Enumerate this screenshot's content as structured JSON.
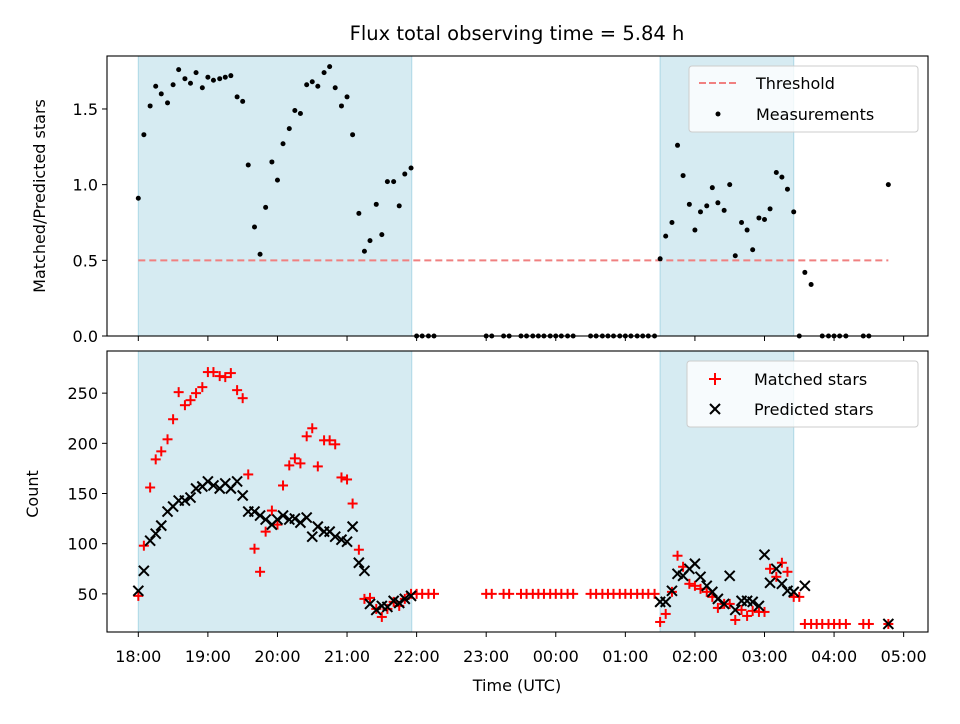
{
  "chart_data": [
    {
      "type": "scatter",
      "title": "Flux total observing time = 5.84 h",
      "xlabel": "",
      "ylabel": "Matched/Predicted stars",
      "xlim": [
        17.55,
        29.35
      ],
      "ylim": [
        0,
        1.85
      ],
      "yticks": [
        0.0,
        0.5,
        1.0,
        1.5
      ],
      "ytick_labels": [
        "0.0",
        "0.5",
        "1.0",
        "1.5"
      ],
      "grid": false,
      "legend_position": "top-right",
      "shaded_spans": [
        [
          18.0,
          21.93
        ],
        [
          25.5,
          27.42
        ]
      ],
      "threshold": {
        "name": "Threshold",
        "value": 0.5,
        "x_range": [
          18.0,
          28.78
        ],
        "color": "#f08080"
      },
      "series": [
        {
          "name": "Measurements",
          "x": [
            18.0,
            18.08,
            18.17,
            18.25,
            18.33,
            18.42,
            18.5,
            18.58,
            18.67,
            18.75,
            18.83,
            18.92,
            19.0,
            19.08,
            19.17,
            19.25,
            19.33,
            19.42,
            19.5,
            19.58,
            19.67,
            19.75,
            19.83,
            19.92,
            20.0,
            20.08,
            20.17,
            20.25,
            20.33,
            20.42,
            20.5,
            20.58,
            20.67,
            20.75,
            20.83,
            20.92,
            21.0,
            21.08,
            21.17,
            21.25,
            21.33,
            21.42,
            21.5,
            21.58,
            21.67,
            21.75,
            21.83,
            21.92,
            22.0,
            22.08,
            22.17,
            22.25,
            23.0,
            23.08,
            23.25,
            23.33,
            23.5,
            23.58,
            23.67,
            23.75,
            23.83,
            23.92,
            24.0,
            24.08,
            24.17,
            24.25,
            24.5,
            24.58,
            24.67,
            24.75,
            24.83,
            24.92,
            25.0,
            25.08,
            25.17,
            25.25,
            25.33,
            25.42,
            25.5,
            25.58,
            25.67,
            25.75,
            25.83,
            25.92,
            26.0,
            26.08,
            26.17,
            26.25,
            26.33,
            26.42,
            26.5,
            26.58,
            26.67,
            26.75,
            26.83,
            26.92,
            27.0,
            27.08,
            27.17,
            27.25,
            27.33,
            27.42,
            27.5,
            27.58,
            27.67,
            27.83,
            27.92,
            28.0,
            28.08,
            28.17,
            28.42,
            28.5,
            28.78
          ],
          "y": [
            0.91,
            1.33,
            1.52,
            1.65,
            1.6,
            1.54,
            1.66,
            1.76,
            1.7,
            1.67,
            1.74,
            1.64,
            1.71,
            1.69,
            1.7,
            1.71,
            1.72,
            1.58,
            1.55,
            1.13,
            0.72,
            0.54,
            0.85,
            1.15,
            1.03,
            1.27,
            1.37,
            1.49,
            1.47,
            1.66,
            1.68,
            1.65,
            1.74,
            1.78,
            1.64,
            1.52,
            1.58,
            1.33,
            0.81,
            0.56,
            0.63,
            0.87,
            0.67,
            1.02,
            1.02,
            0.86,
            1.07,
            1.11,
            0.0,
            0.0,
            0.0,
            0.0,
            0.0,
            0.0,
            0.0,
            0.0,
            0.0,
            0.0,
            0.0,
            0.0,
            0.0,
            0.0,
            0.0,
            0.0,
            0.0,
            0.0,
            0.0,
            0.0,
            0.0,
            0.0,
            0.0,
            0.0,
            0.0,
            0.0,
            0.0,
            0.0,
            0.0,
            0.0,
            0.51,
            0.66,
            0.75,
            1.26,
            1.06,
            0.87,
            0.7,
            0.82,
            0.86,
            0.98,
            0.88,
            0.83,
            1.0,
            0.53,
            0.75,
            0.7,
            0.57,
            0.78,
            0.77,
            0.84,
            1.08,
            1.05,
            0.97,
            0.82,
            0.0,
            0.42,
            0.34,
            0.0,
            0.0,
            0.0,
            0.0,
            0.0,
            0.0,
            0.0,
            1.0
          ],
          "color": "#000000"
        }
      ]
    },
    {
      "type": "scatter",
      "title": "",
      "xlabel": "Time (UTC)",
      "ylabel": "Count",
      "xlim": [
        17.55,
        29.35
      ],
      "ylim": [
        12,
        292
      ],
      "yticks": [
        50,
        100,
        150,
        200,
        250
      ],
      "ytick_labels": [
        "50",
        "100",
        "150",
        "200",
        "250"
      ],
      "xticks": [
        18,
        19,
        20,
        21,
        22,
        23,
        24,
        25,
        26,
        27,
        28,
        29
      ],
      "xtick_labels": [
        "18:00",
        "19:00",
        "20:00",
        "21:00",
        "22:00",
        "23:00",
        "00:00",
        "01:00",
        "02:00",
        "03:00",
        "04:00",
        "05:00"
      ],
      "grid": false,
      "legend_position": "top-right",
      "shaded_spans": [
        [
          18.0,
          21.93
        ],
        [
          25.5,
          27.42
        ]
      ],
      "series": [
        {
          "name": "Matched stars",
          "marker": "plus",
          "color": "#ff0000",
          "x": [
            18.0,
            18.08,
            18.17,
            18.25,
            18.33,
            18.42,
            18.5,
            18.58,
            18.67,
            18.75,
            18.83,
            18.92,
            19.0,
            19.08,
            19.17,
            19.25,
            19.33,
            19.42,
            19.5,
            19.58,
            19.67,
            19.75,
            19.83,
            19.92,
            20.0,
            20.08,
            20.17,
            20.25,
            20.33,
            20.42,
            20.5,
            20.58,
            20.67,
            20.75,
            20.83,
            20.92,
            21.0,
            21.08,
            21.17,
            21.25,
            21.33,
            21.42,
            21.5,
            21.58,
            21.67,
            21.75,
            21.83,
            21.92,
            22.0,
            22.08,
            22.17,
            22.25,
            23.0,
            23.08,
            23.25,
            23.33,
            23.5,
            23.58,
            23.67,
            23.75,
            23.83,
            23.92,
            24.0,
            24.08,
            24.17,
            24.25,
            24.5,
            24.58,
            24.67,
            24.75,
            24.83,
            24.92,
            25.0,
            25.08,
            25.17,
            25.25,
            25.33,
            25.42,
            25.5,
            25.58,
            25.67,
            25.75,
            25.83,
            25.92,
            26.0,
            26.08,
            26.17,
            26.25,
            26.33,
            26.42,
            26.5,
            26.58,
            26.67,
            26.75,
            26.83,
            26.92,
            27.0,
            27.08,
            27.17,
            27.25,
            27.33,
            27.42,
            27.5,
            27.58,
            27.67,
            27.75,
            27.83,
            27.92,
            28.0,
            28.08,
            28.17,
            28.42,
            28.5,
            28.78
          ],
          "y": [
            48,
            98,
            156,
            184,
            192,
            204,
            224,
            251,
            238,
            243,
            250,
            256,
            271,
            271,
            267,
            266,
            270,
            253,
            245,
            169,
            95,
            72,
            112,
            133,
            119,
            158,
            178,
            185,
            180,
            207,
            215,
            177,
            203,
            203,
            199,
            166,
            164,
            140,
            94,
            45,
            46,
            35,
            27,
            35,
            42,
            38,
            45,
            50,
            50,
            50,
            50,
            50,
            50,
            50,
            50,
            50,
            50,
            50,
            50,
            50,
            50,
            50,
            50,
            50,
            50,
            50,
            50,
            50,
            50,
            50,
            50,
            50,
            50,
            50,
            50,
            50,
            50,
            50,
            22,
            30,
            52,
            88,
            77,
            60,
            58,
            55,
            52,
            47,
            36,
            40,
            40,
            24,
            34,
            28,
            33,
            32,
            32,
            75,
            67,
            81,
            72,
            47,
            47,
            20,
            20,
            20,
            20,
            20,
            20,
            20,
            20,
            20,
            20,
            20
          ],
          "marker_size": 6
        },
        {
          "name": "Predicted stars",
          "marker": "x",
          "color": "#000000",
          "x": [
            18.0,
            18.08,
            18.17,
            18.25,
            18.33,
            18.42,
            18.5,
            18.58,
            18.67,
            18.75,
            18.83,
            18.92,
            19.0,
            19.08,
            19.17,
            19.25,
            19.33,
            19.42,
            19.5,
            19.58,
            19.67,
            19.75,
            19.83,
            19.92,
            20.0,
            20.08,
            20.17,
            20.25,
            20.33,
            20.42,
            20.5,
            20.58,
            20.67,
            20.75,
            20.83,
            20.92,
            21.0,
            21.08,
            21.17,
            21.25,
            21.33,
            21.42,
            21.5,
            21.58,
            21.67,
            21.75,
            21.83,
            21.92,
            25.5,
            25.58,
            25.67,
            25.75,
            25.83,
            25.92,
            26.0,
            26.08,
            26.17,
            26.25,
            26.33,
            26.42,
            26.5,
            26.58,
            26.67,
            26.75,
            26.83,
            26.92,
            27.0,
            27.08,
            27.17,
            27.25,
            27.33,
            27.42,
            27.58,
            28.78
          ],
          "y": [
            53,
            73,
            103,
            110,
            118,
            132,
            137,
            143,
            143,
            146,
            155,
            157,
            162,
            158,
            155,
            160,
            155,
            162,
            148,
            132,
            132,
            128,
            124,
            119,
            124,
            128,
            124,
            125,
            121,
            126,
            107,
            117,
            112,
            112,
            107,
            104,
            102,
            117,
            81,
            73,
            40,
            34,
            38,
            37,
            43,
            41,
            45,
            48,
            42,
            42,
            53,
            70,
            68,
            75,
            80,
            67,
            58,
            52,
            45,
            40,
            68,
            34,
            43,
            43,
            42,
            38,
            89,
            61,
            75,
            60,
            53,
            52,
            58,
            20
          ],
          "marker_size": 6
        }
      ]
    }
  ]
}
